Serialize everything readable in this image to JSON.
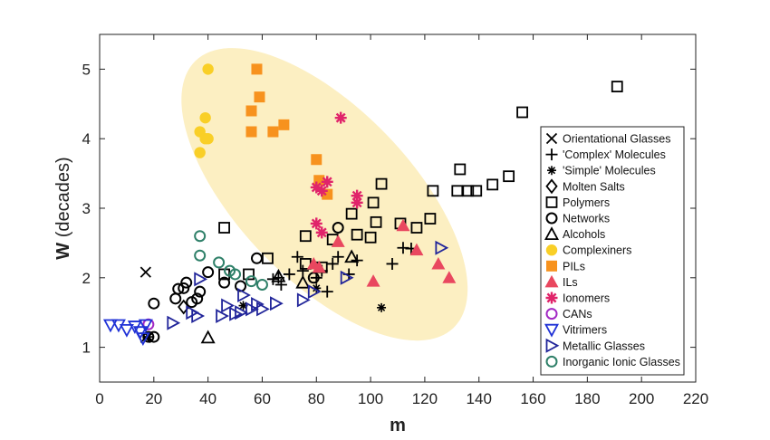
{
  "chart_data": {
    "type": "scatter",
    "xlabel": "m",
    "ylabel_main": "W",
    "ylabel_unit": " (decades)",
    "xlim": [
      0,
      220
    ],
    "ylim": [
      0.5,
      5.5
    ],
    "xticks": [
      0,
      20,
      40,
      60,
      80,
      100,
      120,
      140,
      160,
      180,
      200,
      220
    ],
    "yticks": [
      1,
      2,
      3,
      4,
      5
    ],
    "grid": false,
    "legend_position": "right",
    "highlight_region": {
      "shape": "ellipse",
      "center": [
        83,
        3.2
      ],
      "color": "#FCEFC2"
    },
    "series": [
      {
        "name": "Orientational Glasses",
        "marker": "x",
        "color": "#000000",
        "points": [
          [
            17,
            2.08
          ],
          [
            17,
            1.14
          ]
        ]
      },
      {
        "name": "'Complex' Molecules",
        "marker": "plus",
        "color": "#000000",
        "points": [
          [
            64,
            1.98
          ],
          [
            66,
            2.0
          ],
          [
            70,
            2.05
          ],
          [
            67,
            1.9
          ],
          [
            73,
            2.3
          ],
          [
            75,
            2.1
          ],
          [
            80,
            2.0
          ],
          [
            82,
            2.1
          ],
          [
            84,
            1.8
          ],
          [
            86,
            2.2
          ],
          [
            88,
            2.3
          ],
          [
            92,
            2.05
          ],
          [
            95,
            2.25
          ],
          [
            108,
            2.2
          ],
          [
            112,
            2.43
          ],
          [
            115,
            2.42
          ]
        ]
      },
      {
        "name": "'Simple' Molecules",
        "marker": "asterisk",
        "color": "#000000",
        "points": [
          [
            18,
            1.15
          ],
          [
            53,
            1.6
          ],
          [
            80,
            1.85
          ],
          [
            104,
            1.57
          ]
        ]
      },
      {
        "name": "Molten Salts",
        "marker": "diamond",
        "color": "#000000",
        "points": [
          [
            31,
            1.58
          ]
        ]
      },
      {
        "name": "Polymers",
        "marker": "square",
        "color": "#000000",
        "points": [
          [
            46,
            2.72
          ],
          [
            46,
            2.05
          ],
          [
            55,
            2.05
          ],
          [
            62,
            2.28
          ],
          [
            76,
            2.6
          ],
          [
            76,
            2.2
          ],
          [
            82,
            2.15
          ],
          [
            86,
            2.55
          ],
          [
            93,
            2.92
          ],
          [
            95,
            2.62
          ],
          [
            100,
            2.58
          ],
          [
            101,
            3.08
          ],
          [
            102,
            2.8
          ],
          [
            104,
            3.35
          ],
          [
            111,
            2.78
          ],
          [
            117,
            2.72
          ],
          [
            122,
            2.85
          ],
          [
            123,
            3.25
          ],
          [
            132,
            3.25
          ],
          [
            133,
            3.56
          ],
          [
            136,
            3.25
          ],
          [
            139,
            3.25
          ],
          [
            145,
            3.34
          ],
          [
            151,
            3.46
          ],
          [
            156,
            4.38
          ],
          [
            191,
            4.75
          ]
        ]
      },
      {
        "name": "Networks",
        "marker": "circle",
        "color": "#000000",
        "points": [
          [
            18,
            1.15
          ],
          [
            20,
            1.15
          ],
          [
            20,
            1.63
          ],
          [
            28,
            1.7
          ],
          [
            29,
            1.84
          ],
          [
            31,
            1.85
          ],
          [
            32,
            1.93
          ],
          [
            34,
            1.65
          ],
          [
            36,
            1.7
          ],
          [
            37,
            1.8
          ],
          [
            40,
            2.08
          ],
          [
            46,
            1.93
          ],
          [
            52,
            1.88
          ],
          [
            58,
            2.28
          ],
          [
            79,
            2.0
          ],
          [
            88,
            2.72
          ]
        ]
      },
      {
        "name": "Alcohols",
        "marker": "triangle-up",
        "color": "#000000",
        "points": [
          [
            40,
            1.14
          ],
          [
            66,
            2.02
          ],
          [
            75,
            1.93
          ],
          [
            93,
            2.3
          ]
        ]
      },
      {
        "name": "Complexiners",
        "marker": "circle-filled",
        "color": "#F9CF27",
        "points": [
          [
            40,
            5.0
          ],
          [
            37,
            4.1
          ],
          [
            37,
            3.8
          ],
          [
            39,
            4.3
          ],
          [
            39,
            4.0
          ],
          [
            40,
            4.0
          ]
        ]
      },
      {
        "name": "PILs",
        "marker": "square-filled",
        "color": "#F7921E",
        "points": [
          [
            58,
            5.0
          ],
          [
            59,
            4.6
          ],
          [
            56,
            4.4
          ],
          [
            56,
            4.1
          ],
          [
            64,
            4.1
          ],
          [
            68,
            4.2
          ],
          [
            80,
            3.7
          ],
          [
            81,
            3.4
          ],
          [
            84,
            3.2
          ]
        ]
      },
      {
        "name": "ILs",
        "marker": "triangle-filled",
        "color": "#E9475F",
        "points": [
          [
            79,
            2.2
          ],
          [
            81,
            2.15
          ],
          [
            88,
            2.52
          ],
          [
            101,
            1.95
          ],
          [
            112,
            2.75
          ],
          [
            117,
            2.4
          ],
          [
            125,
            2.2
          ],
          [
            129,
            2.0
          ]
        ]
      },
      {
        "name": "Ionomers",
        "marker": "asterisk-bold",
        "color": "#E0246A",
        "points": [
          [
            89,
            4.3
          ],
          [
            80,
            3.3
          ],
          [
            82,
            3.25
          ],
          [
            84,
            3.38
          ],
          [
            95,
            3.18
          ],
          [
            95,
            3.08
          ],
          [
            80,
            2.78
          ],
          [
            82,
            2.65
          ]
        ]
      },
      {
        "name": "CANs",
        "marker": "circle",
        "color": "#A228C4",
        "points": [
          [
            18,
            1.33
          ]
        ]
      },
      {
        "name": "Vitrimers",
        "marker": "triangle-down",
        "color": "#1F31D6",
        "points": [
          [
            4,
            1.32
          ],
          [
            7,
            1.32
          ],
          [
            10,
            1.25
          ],
          [
            13,
            1.3
          ],
          [
            15,
            1.22
          ],
          [
            16,
            1.13
          ],
          [
            17,
            1.32
          ]
        ]
      },
      {
        "name": "Metallic Glasses",
        "marker": "triangle-right",
        "color": "#21259A",
        "points": [
          [
            27,
            1.35
          ],
          [
            34,
            1.5
          ],
          [
            36,
            1.45
          ],
          [
            37,
            1.98
          ],
          [
            45,
            1.45
          ],
          [
            47,
            1.6
          ],
          [
            50,
            1.48
          ],
          [
            52,
            1.5
          ],
          [
            53,
            1.75
          ],
          [
            56,
            1.55
          ],
          [
            58,
            1.62
          ],
          [
            60,
            1.55
          ],
          [
            65,
            1.63
          ],
          [
            75,
            1.68
          ],
          [
            79,
            1.8
          ],
          [
            91,
            2.0
          ],
          [
            126,
            2.43
          ]
        ]
      },
      {
        "name": "Inorganic Ionic Glasses",
        "marker": "circle",
        "color": "#2F8069",
        "points": [
          [
            37,
            2.6
          ],
          [
            37,
            2.32
          ],
          [
            44,
            2.22
          ],
          [
            48,
            2.1
          ],
          [
            50,
            2.05
          ],
          [
            56,
            1.95
          ],
          [
            60,
            1.9
          ]
        ]
      }
    ],
    "legend_labels": [
      "Orientational Glasses",
      "'Complex' Molecules",
      "'Simple' Molecules",
      "Molten Salts",
      "Polymers",
      "Networks",
      "Alcohols",
      "Complexiners",
      "PILs",
      "ILs",
      "Ionomers",
      "CANs",
      "Vitrimers",
      "Metallic Glasses",
      "Inorganic Ionic Glasses"
    ]
  }
}
